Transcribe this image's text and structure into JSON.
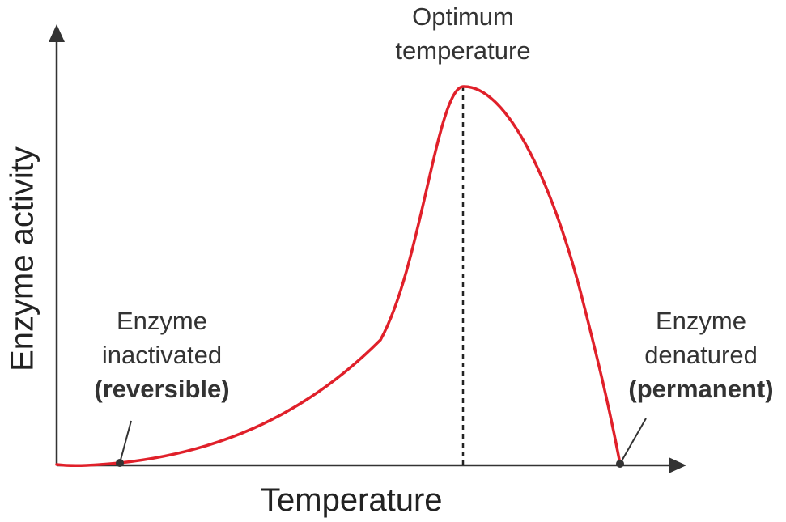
{
  "chart_data": {
    "type": "line",
    "xlabel": "Temperature",
    "ylabel": "Enzyme activity",
    "ticks": "none",
    "curve_color": "#e0202a",
    "axis_color": "#333333",
    "annotations": {
      "optimum": {
        "line1": "Optimum",
        "line2": "temperature"
      },
      "inactivated": {
        "line1": "Enzyme",
        "line2": "inactivated",
        "line3": "(reversible)"
      },
      "denatured": {
        "line1": "Enzyme",
        "line2": "denatured",
        "line3": "(permanent)"
      }
    }
  }
}
